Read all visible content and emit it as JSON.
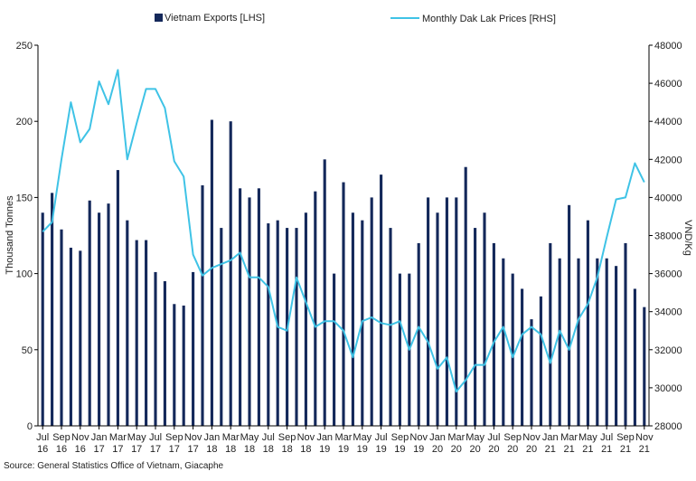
{
  "chart_data": {
    "type": "bar+line",
    "categories": [
      "Jul 16",
      "Aug 16",
      "Sep 16",
      "Oct 16",
      "Nov 16",
      "Dec 16",
      "Jan 17",
      "Feb 17",
      "Mar 17",
      "Apr 17",
      "May 17",
      "Jun 17",
      "Jul 17",
      "Aug 17",
      "Sep 17",
      "Oct 17",
      "Nov 17",
      "Dec 17",
      "Jan 18",
      "Feb 18",
      "Mar 18",
      "Apr 18",
      "May 18",
      "Jun 18",
      "Jul 18",
      "Aug 18",
      "Sep 18",
      "Oct 18",
      "Nov 18",
      "Dec 18",
      "Jan 19",
      "Feb 19",
      "Mar 19",
      "Apr 19",
      "May 19",
      "Jun 19",
      "Jul 19",
      "Aug 19",
      "Sep 19",
      "Oct 19",
      "Nov 19",
      "Dec 19",
      "Jan 20",
      "Feb 20",
      "Mar 20",
      "Apr 20",
      "May 20",
      "Jun 20",
      "Jul 20",
      "Aug 20",
      "Sep 20",
      "Oct 20",
      "Nov 20",
      "Dec 20",
      "Jan 21",
      "Feb 21",
      "Mar 21",
      "Apr 21",
      "May 21",
      "Jun 21",
      "Jul 21",
      "Aug 21",
      "Sep 21",
      "Oct 21",
      "Nov 21"
    ],
    "x_tick_labels": [
      {
        "month": "Jul",
        "year": "16"
      },
      {
        "month": "Sep",
        "year": "16"
      },
      {
        "month": "Nov",
        "year": "16"
      },
      {
        "month": "Jan",
        "year": "17"
      },
      {
        "month": "Mar",
        "year": "17"
      },
      {
        "month": "May",
        "year": "17"
      },
      {
        "month": "Jul",
        "year": "17"
      },
      {
        "month": "Sep",
        "year": "17"
      },
      {
        "month": "Nov",
        "year": "17"
      },
      {
        "month": "Jan",
        "year": "18"
      },
      {
        "month": "Mar",
        "year": "18"
      },
      {
        "month": "May",
        "year": "18"
      },
      {
        "month": "Jul",
        "year": "18"
      },
      {
        "month": "Sep",
        "year": "18"
      },
      {
        "month": "Nov",
        "year": "18"
      },
      {
        "month": "Jan",
        "year": "19"
      },
      {
        "month": "Mar",
        "year": "19"
      },
      {
        "month": "May",
        "year": "19"
      },
      {
        "month": "Jul",
        "year": "19"
      },
      {
        "month": "Sep",
        "year": "19"
      },
      {
        "month": "Nov",
        "year": "19"
      },
      {
        "month": "Jan",
        "year": "20"
      },
      {
        "month": "Mar",
        "year": "20"
      },
      {
        "month": "May",
        "year": "20"
      },
      {
        "month": "Jul",
        "year": "20"
      },
      {
        "month": "Sep",
        "year": "20"
      },
      {
        "month": "Nov",
        "year": "20"
      },
      {
        "month": "Jan",
        "year": "21"
      },
      {
        "month": "Mar",
        "year": "21"
      },
      {
        "month": "May",
        "year": "21"
      },
      {
        "month": "Jul",
        "year": "21"
      },
      {
        "month": "Sep",
        "year": "21"
      },
      {
        "month": "Nov",
        "year": "21"
      }
    ],
    "series": [
      {
        "name": "Vietnam Exports [LHS]",
        "kind": "bar",
        "axis": "left",
        "color": "#14285a",
        "values": [
          140,
          153,
          129,
          117,
          115,
          148,
          140,
          146,
          168,
          135,
          122,
          122,
          101,
          95,
          80,
          79,
          101,
          158,
          201,
          130,
          200,
          156,
          150,
          156,
          133,
          135,
          130,
          130,
          140,
          154,
          175,
          100,
          160,
          140,
          135,
          150,
          165,
          130,
          100,
          100,
          120,
          150,
          140,
          150,
          150,
          170,
          130,
          140,
          120,
          110,
          100,
          90,
          70,
          85,
          120,
          110,
          145,
          110,
          135,
          110,
          110,
          105,
          120,
          90,
          78
        ]
      },
      {
        "name": "Monthly Dak Lak Prices [RHS]",
        "kind": "line",
        "axis": "right",
        "color": "#3fc3e6",
        "values": [
          38200,
          38700,
          42000,
          45000,
          42900,
          43600,
          46100,
          44900,
          46700,
          42000,
          43900,
          45700,
          45700,
          44700,
          41900,
          41100,
          37000,
          35900,
          36300,
          36500,
          36700,
          37100,
          35800,
          35800,
          35300,
          33200,
          33000,
          35800,
          34500,
          33200,
          33500,
          33500,
          33000,
          31600,
          33500,
          33700,
          33400,
          33300,
          33500,
          32000,
          33200,
          32400,
          31000,
          31600,
          29800,
          30400,
          31200,
          31200,
          32400,
          33200,
          31600,
          32800,
          33200,
          32800,
          31300,
          33000,
          32000,
          33600,
          34400,
          35800,
          37900,
          39900,
          40000,
          41800,
          40800
        ]
      }
    ],
    "y_left": {
      "label": "Thousand Tonnes",
      "min": 0,
      "max": 250,
      "ticks": [
        0,
        50,
        100,
        150,
        200,
        250
      ]
    },
    "y_right": {
      "label": "VND/Kg",
      "min": 28000,
      "max": 48000,
      "ticks": [
        28000,
        30000,
        32000,
        34000,
        36000,
        38000,
        40000,
        42000,
        44000,
        46000,
        48000
      ]
    },
    "legend_position": "top",
    "grid": false
  },
  "source_text": "Source: General Statistics Office of Vietnam, Giacaphe"
}
